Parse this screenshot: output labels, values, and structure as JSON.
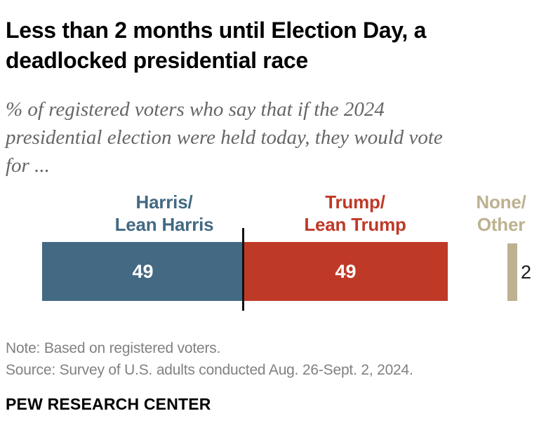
{
  "header": {
    "title_line1": "Less than 2 months until Election Day, a",
    "title_line2": "deadlocked presidential race",
    "subtitle_line1": "% of registered voters who say that if the 2024",
    "subtitle_line2": "presidential election were held today, they would vote",
    "subtitle_line3": "for ..."
  },
  "chart_data": {
    "type": "bar",
    "title": "Less than 2 months until Election Day, a deadlocked presidential race",
    "subtitle": "% of registered voters who say that if the 2024 presidential election were held today, they would vote for ...",
    "unit": "percent of registered voters",
    "categories": [
      "Harris/Lean Harris",
      "Trump/Lean Trump",
      "None/Other"
    ],
    "values": [
      49,
      49,
      2
    ],
    "colors": [
      "#436983",
      "#bf3927",
      "#bdb190"
    ],
    "layout": "single horizontal stacked bar; Harris and Trump segments adjacent with black tick mark at their boundary (50% midpoint); None/Other drawn as a small separate bar at far right with value outside in black; values for Harris and Trump printed in white inside segments"
  },
  "chart": {
    "groups": [
      {
        "label_line1": "Harris/",
        "label_line2": "Lean Harris",
        "value": "49",
        "color": "#436983"
      },
      {
        "label_line1": "Trump/",
        "label_line2": "Lean Trump",
        "value": "49",
        "color": "#bf3927"
      },
      {
        "label_line1": "None/",
        "label_line2": "Other",
        "value": "2",
        "color": "#bdb190"
      }
    ],
    "divider_color": "#111111"
  },
  "footer": {
    "note": "Note: Based on registered voters.",
    "source": "Source: Survey of U.S. adults conducted Aug. 26-Sept. 2, 2024.",
    "brand": "PEW RESEARCH CENTER"
  }
}
